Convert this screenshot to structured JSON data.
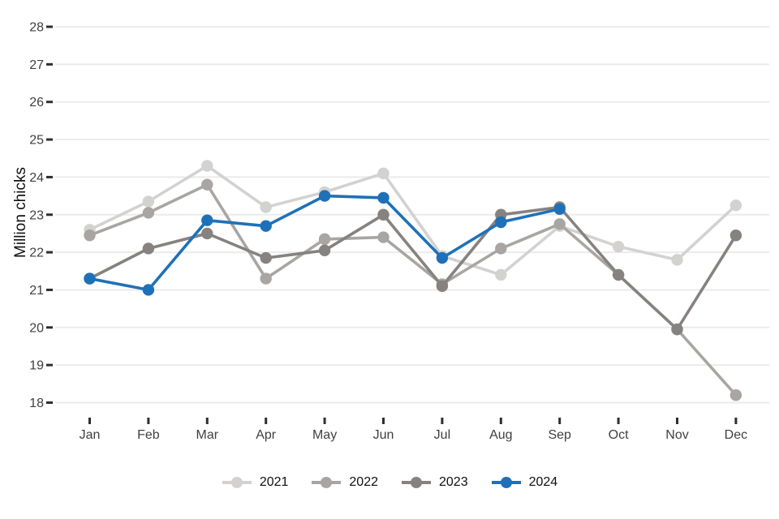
{
  "chart_data": {
    "type": "line",
    "title": "",
    "ylabel": "Million chicks",
    "xlabel": "",
    "categories": [
      "Jan",
      "Feb",
      "Mar",
      "Apr",
      "May",
      "Jun",
      "Jul",
      "Aug",
      "Sep",
      "Oct",
      "Nov",
      "Dec"
    ],
    "ylim": [
      18,
      28
    ],
    "ytick_step": 1,
    "yticks": [
      18,
      19,
      20,
      21,
      22,
      23,
      24,
      25,
      26,
      27,
      28
    ],
    "grid": "horizontal-only",
    "legend_position": "bottom",
    "series": [
      {
        "name": "2021",
        "color": "#d3d2d1",
        "values": [
          22.6,
          23.35,
          24.3,
          23.2,
          23.6,
          24.1,
          21.9,
          21.4,
          22.7,
          22.15,
          21.8,
          23.25
        ]
      },
      {
        "name": "2022",
        "color": "#a9a5a2",
        "values": [
          22.45,
          23.05,
          23.8,
          21.3,
          22.35,
          22.4,
          21.15,
          22.1,
          22.75,
          21.4,
          19.95,
          18.2
        ]
      },
      {
        "name": "2023",
        "color": "#868280",
        "values": [
          21.3,
          22.1,
          22.5,
          21.85,
          22.05,
          23.0,
          21.1,
          23.0,
          23.2,
          21.4,
          19.95,
          22.45
        ]
      },
      {
        "name": "2024",
        "color": "#1e71b8",
        "values": [
          21.3,
          21.0,
          22.85,
          22.7,
          23.5,
          23.45,
          21.85,
          22.8,
          23.15,
          null,
          null,
          null
        ]
      }
    ],
    "style": {
      "grid_color": "#ebebeb",
      "tick_mark_color": "#2e2e2e",
      "tick_label_color": "#404040",
      "background": "#ffffff"
    }
  }
}
